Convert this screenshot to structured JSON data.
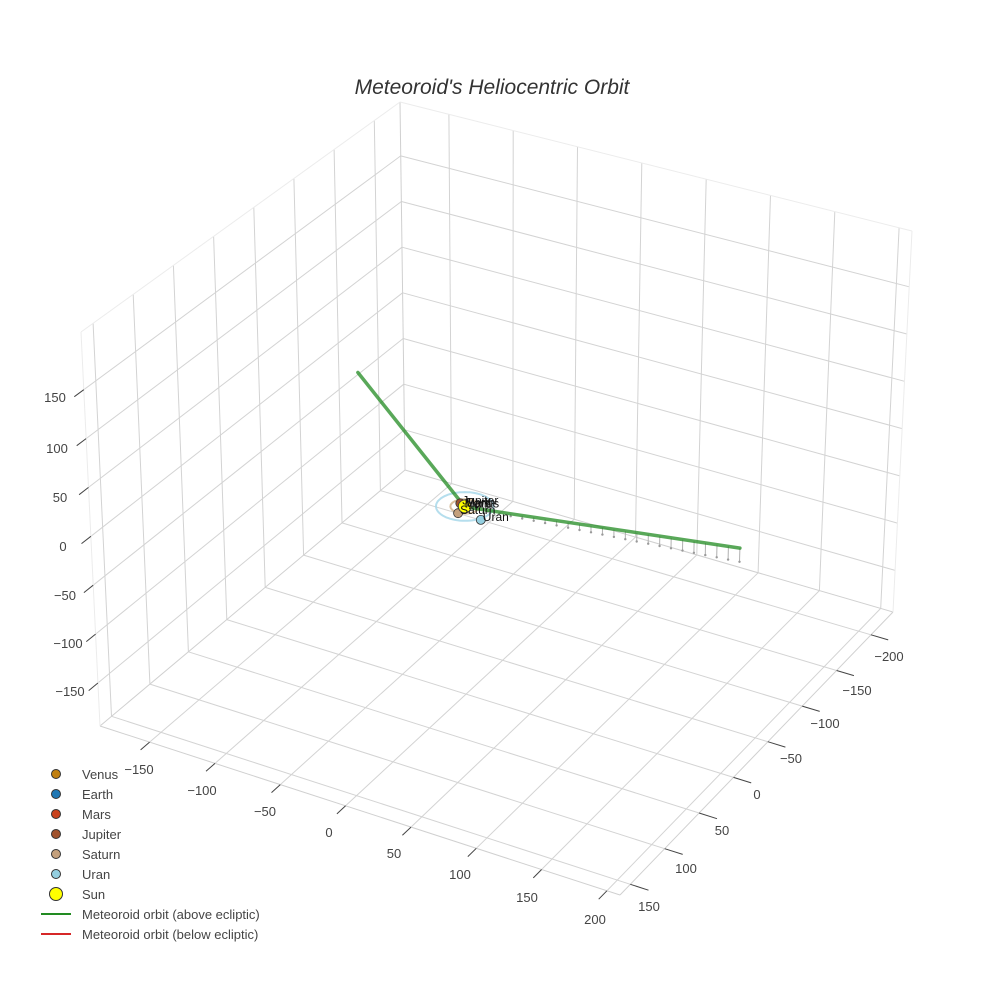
{
  "title": "Meteoroid's Heliocentric Orbit",
  "legend": {
    "items": [
      {
        "label": "Venus",
        "symbol": "marker",
        "color": "#c07f10"
      },
      {
        "label": "Earth",
        "symbol": "marker",
        "color": "#1f77b4"
      },
      {
        "label": "Mars",
        "symbol": "marker",
        "color": "#c8421e"
      },
      {
        "label": "Jupiter",
        "symbol": "marker",
        "color": "#a0522d"
      },
      {
        "label": "Saturn",
        "symbol": "marker",
        "color": "#c4a07c"
      },
      {
        "label": "Uran",
        "symbol": "marker",
        "color": "#94cfe0"
      },
      {
        "label": "Sun",
        "symbol": "marker-large",
        "color": "#ffff00"
      },
      {
        "label": "Meteoroid orbit (above ecliptic)",
        "symbol": "line",
        "color": "#228b22"
      },
      {
        "label": "Meteoroid orbit (below ecliptic)",
        "symbol": "line",
        "color": "#d62728"
      }
    ]
  },
  "chart_data": {
    "type": "scatter3d",
    "title": "Meteoroid's Heliocentric Orbit",
    "xlabel": "",
    "ylabel": "",
    "zlabel": "",
    "grid": true,
    "legend_position": "bottom-left",
    "axes": {
      "x": {
        "range": [
          -232,
          165
        ],
        "ticks": [
          -200,
          -150,
          -100,
          -50,
          0,
          50,
          100,
          150
        ],
        "tick_labels": [
          "−200",
          "−150",
          "−100",
          "−50",
          "0",
          "50",
          "100",
          "150"
        ]
      },
      "y": {
        "range": [
          -188,
          210
        ],
        "ticks": [
          -150,
          -100,
          -50,
          0,
          50,
          100,
          150,
          200
        ],
        "tick_labels": [
          "−150",
          "−100",
          "−50",
          "0",
          "50",
          "100",
          "150",
          "200"
        ]
      },
      "z": {
        "range": [
          -194,
          209
        ],
        "ticks": [
          -150,
          -100,
          -50,
          0,
          50,
          100,
          150
        ],
        "tick_labels": [
          "−150",
          "−100",
          "−50",
          "0",
          "50",
          "100",
          "150"
        ]
      }
    },
    "bodies": [
      {
        "name": "Venus",
        "x": 0.5,
        "y": -0.5,
        "z": 0,
        "color": "#c07f10"
      },
      {
        "name": "Earth",
        "x": -0.7,
        "y": -0.7,
        "z": 0,
        "color": "#1f77b4"
      },
      {
        "name": "Mars",
        "x": 1.0,
        "y": -1.1,
        "z": 0.02,
        "color": "#c8421e"
      },
      {
        "name": "Jupiter",
        "x": -2.0,
        "y": -4.6,
        "z": 0.1,
        "color": "#a0522d"
      },
      {
        "name": "Saturn",
        "x": 9.8,
        "y": 0.5,
        "z": -0.3,
        "color": "#c4a07c",
        "orbit_radius": 9.6,
        "orbit_color": "#d2b48c"
      },
      {
        "name": "Uran",
        "x": 10,
        "y": 18,
        "z": -0.2,
        "color": "#94cfe0",
        "orbit_radius": 19.2,
        "orbit_color": "#a8d8ea"
      }
    ],
    "sun": {
      "name": "Sun",
      "x": 0,
      "y": 0,
      "z": 0,
      "color": "#ffff00"
    },
    "series": [
      {
        "name": "Meteoroid orbit (above ecliptic)",
        "color": "#228b22",
        "points": [
          [
            55,
            -48,
            155
          ],
          [
            0.6,
            0.3,
            0
          ],
          [
            -28,
            196,
            14
          ]
        ],
        "drop_lines": {
          "segment_index": 1,
          "samples": 25,
          "color": "#b0b0b0"
        }
      },
      {
        "name": "Meteoroid orbit (below ecliptic)",
        "color": "#d62728",
        "points": []
      }
    ]
  }
}
